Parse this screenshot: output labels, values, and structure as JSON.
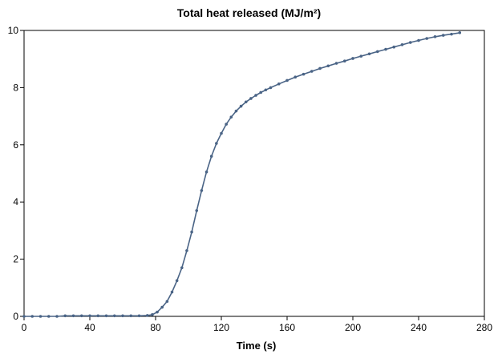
{
  "chart_data": {
    "type": "line",
    "title": "Total heat released (MJ/m²)",
    "xlabel": "Time (s)",
    "ylabel": "",
    "xlim": [
      0,
      280
    ],
    "ylim": [
      0,
      10
    ],
    "x_ticks": [
      0,
      40,
      80,
      120,
      160,
      200,
      240,
      280
    ],
    "y_ticks": [
      0,
      2,
      4,
      6,
      8,
      10
    ],
    "grid": false,
    "legend": "none",
    "line_color": "#4a6486",
    "series": [
      {
        "x": [
          0,
          5,
          10,
          15,
          20,
          25,
          30,
          35,
          40,
          45,
          50,
          55,
          60,
          65,
          70,
          75,
          78,
          81,
          84,
          87,
          90,
          93,
          96,
          99,
          102,
          105,
          108,
          111,
          114,
          117,
          120,
          123,
          126,
          129,
          132,
          135,
          138,
          141,
          144,
          147,
          150,
          155,
          160,
          165,
          170,
          175,
          180,
          185,
          190,
          195,
          200,
          205,
          210,
          215,
          220,
          225,
          230,
          235,
          240,
          245,
          250,
          255,
          260,
          265
        ],
        "y": [
          0.0,
          0.0,
          0.0,
          0.0,
          0.0,
          0.02,
          0.02,
          0.02,
          0.02,
          0.02,
          0.02,
          0.02,
          0.02,
          0.02,
          0.02,
          0.03,
          0.06,
          0.15,
          0.32,
          0.52,
          0.85,
          1.25,
          1.7,
          2.3,
          2.95,
          3.7,
          4.4,
          5.05,
          5.6,
          6.05,
          6.4,
          6.72,
          6.97,
          7.18,
          7.35,
          7.5,
          7.62,
          7.73,
          7.83,
          7.92,
          8.0,
          8.13,
          8.25,
          8.37,
          8.47,
          8.57,
          8.67,
          8.76,
          8.85,
          8.93,
          9.02,
          9.1,
          9.18,
          9.26,
          9.34,
          9.42,
          9.5,
          9.58,
          9.65,
          9.72,
          9.78,
          9.83,
          9.87,
          9.92
        ]
      }
    ]
  }
}
